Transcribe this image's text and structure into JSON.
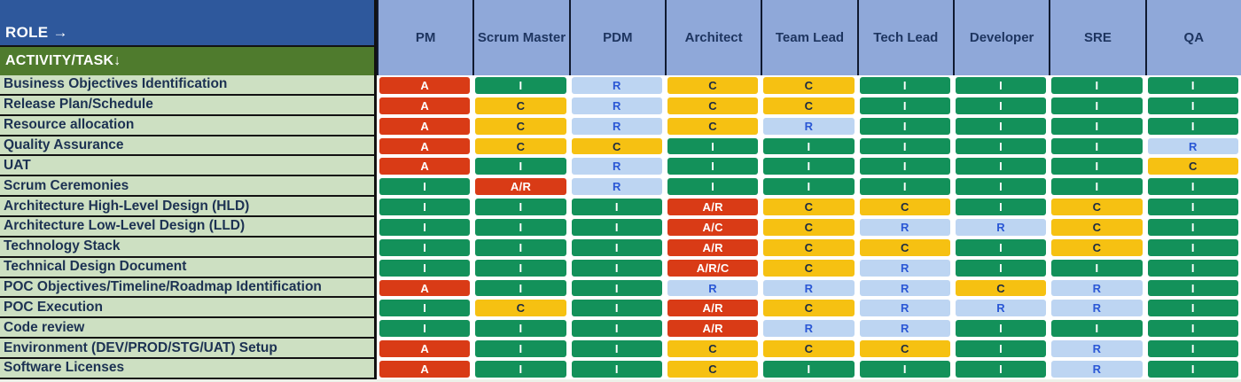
{
  "chart_data": {
    "type": "table",
    "corner_labels": {
      "role": "ROLE →",
      "activity": "ACTIVITY/TASK↓"
    },
    "columns": [
      "PM",
      "Scrum Master",
      "PDM",
      "Architect",
      "Team Lead",
      "Tech Lead",
      "Developer",
      "SRE",
      "QA"
    ],
    "rows": [
      {
        "task": "Business Objectives Identification",
        "values": [
          "A",
          "I",
          "R",
          "C",
          "C",
          "I",
          "I",
          "I",
          "I"
        ]
      },
      {
        "task": "Release Plan/Schedule",
        "values": [
          "A",
          "C",
          "R",
          "C",
          "C",
          "I",
          "I",
          "I",
          "I"
        ]
      },
      {
        "task": "Resource allocation",
        "values": [
          "A",
          "C",
          "R",
          "C",
          "R",
          "I",
          "I",
          "I",
          "I"
        ]
      },
      {
        "task": "Quality Assurance",
        "values": [
          "A",
          "C",
          "C",
          "I",
          "I",
          "I",
          "I",
          "I",
          "R"
        ]
      },
      {
        "task": "UAT",
        "values": [
          "A",
          "I",
          "R",
          "I",
          "I",
          "I",
          "I",
          "I",
          "C"
        ]
      },
      {
        "task": "Scrum Ceremonies",
        "values": [
          "I",
          "A/R",
          "R",
          "I",
          "I",
          "I",
          "I",
          "I",
          "I"
        ]
      },
      {
        "task": "Architecture High-Level Design (HLD)",
        "values": [
          "I",
          "I",
          "I",
          "A/R",
          "C",
          "C",
          "I",
          "C",
          "I"
        ]
      },
      {
        "task": "Architecture Low-Level Design (LLD)",
        "values": [
          "I",
          "I",
          "I",
          "A/C",
          "C",
          "R",
          "R",
          "C",
          "I"
        ]
      },
      {
        "task": "Technology Stack",
        "values": [
          "I",
          "I",
          "I",
          "A/R",
          "C",
          "C",
          "I",
          "C",
          "I"
        ]
      },
      {
        "task": "Technical Design Document",
        "values": [
          "I",
          "I",
          "I",
          "A/R/C",
          "C",
          "R",
          "I",
          "I",
          "I"
        ]
      },
      {
        "task": "POC Objectives/Timeline/Roadmap Identification",
        "values": [
          "A",
          "I",
          "I",
          "R",
          "R",
          "R",
          "C",
          "R",
          "I"
        ]
      },
      {
        "task": "POC Execution",
        "values": [
          "I",
          "C",
          "I",
          "A/R",
          "C",
          "R",
          "R",
          "R",
          "I"
        ]
      },
      {
        "task": "Code review",
        "values": [
          "I",
          "I",
          "I",
          "A/R",
          "R",
          "R",
          "I",
          "I",
          "I"
        ]
      },
      {
        "task": "Environment (DEV/PROD/STG/UAT) Setup",
        "values": [
          "A",
          "I",
          "I",
          "C",
          "C",
          "C",
          "I",
          "R",
          "I"
        ]
      },
      {
        "task": "Software Licenses",
        "values": [
          "A",
          "I",
          "I",
          "C",
          "I",
          "I",
          "I",
          "R",
          "I"
        ]
      }
    ],
    "raci_styles": {
      "A": {
        "bg": "#d93b16",
        "fg": "#ffffff"
      },
      "I": {
        "bg": "#13915a",
        "fg": "#ffffff"
      },
      "C": {
        "bg": "#f6c112",
        "fg": "#1c2b43"
      },
      "R": {
        "bg": "#bdd5f2",
        "fg": "#2a57d5"
      }
    }
  },
  "colors": {
    "corner_role_bg": "#2e589c",
    "corner_activity_bg": "#4f7b2d",
    "role_header_bg": "#8fa8d9",
    "role_header_fg": "#1e3560",
    "task_label_bg": "#cde0c2",
    "task_label_fg": "#1c3152",
    "grid_line": "#121212"
  }
}
